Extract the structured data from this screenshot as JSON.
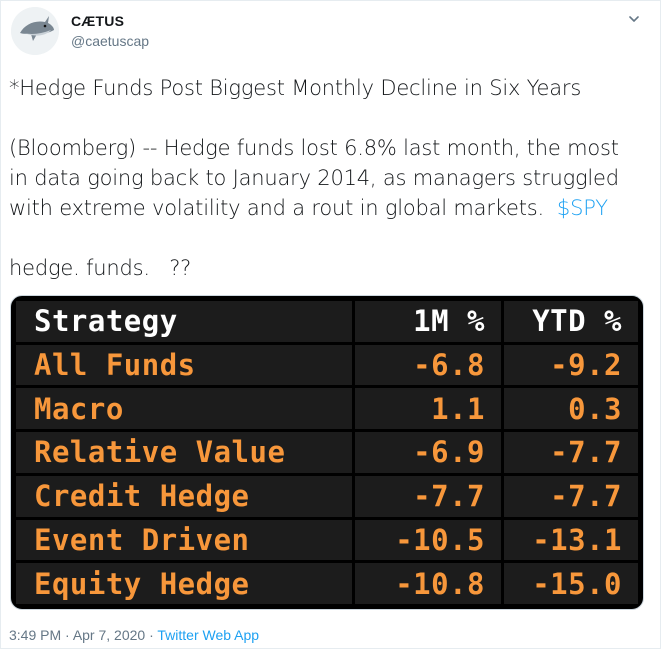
{
  "user": {
    "name": "CÆTUS",
    "handle": "@caetuscap"
  },
  "tweet": {
    "line1": "*Hedge Funds Post Biggest Monthly Decline in Six Years",
    "line2": "(Bloomberg) -- Hedge funds lost 6.8% last month, the most",
    "line3": "in data going back to January 2014, as managers struggled",
    "line4a": "with extreme volatility and a rout in global markets.  ",
    "cashtag": "$SPY",
    "line5": "hedge. funds.   ??"
  },
  "table": {
    "headers": [
      "Strategy",
      "1M %",
      "YTD %"
    ],
    "rows": [
      [
        "All Funds",
        "-6.8",
        "-9.2"
      ],
      [
        "Macro",
        "1.1",
        "0.3"
      ],
      [
        "Relative Value",
        "-6.9",
        "-7.7"
      ],
      [
        "Credit Hedge",
        "-7.7",
        "-7.7"
      ],
      [
        "Event Driven",
        "-10.5",
        "-13.1"
      ],
      [
        "Equity Hedge",
        "-10.8",
        "-15.0"
      ]
    ]
  },
  "footer": {
    "time": "3:49 PM",
    "sep1": " · ",
    "date": "Apr 7, 2020",
    "sep2": " · ",
    "source": "Twitter Web App"
  },
  "colors": {
    "accent": "#1da1f2",
    "table_bg": "#000000",
    "cell_bg": "#1c1c1c",
    "value_orange": "#f7973b",
    "header_white": "#ffffff"
  },
  "icons": {
    "avatar": "shark-avatar-icon",
    "menu": "chevron-down-icon"
  }
}
